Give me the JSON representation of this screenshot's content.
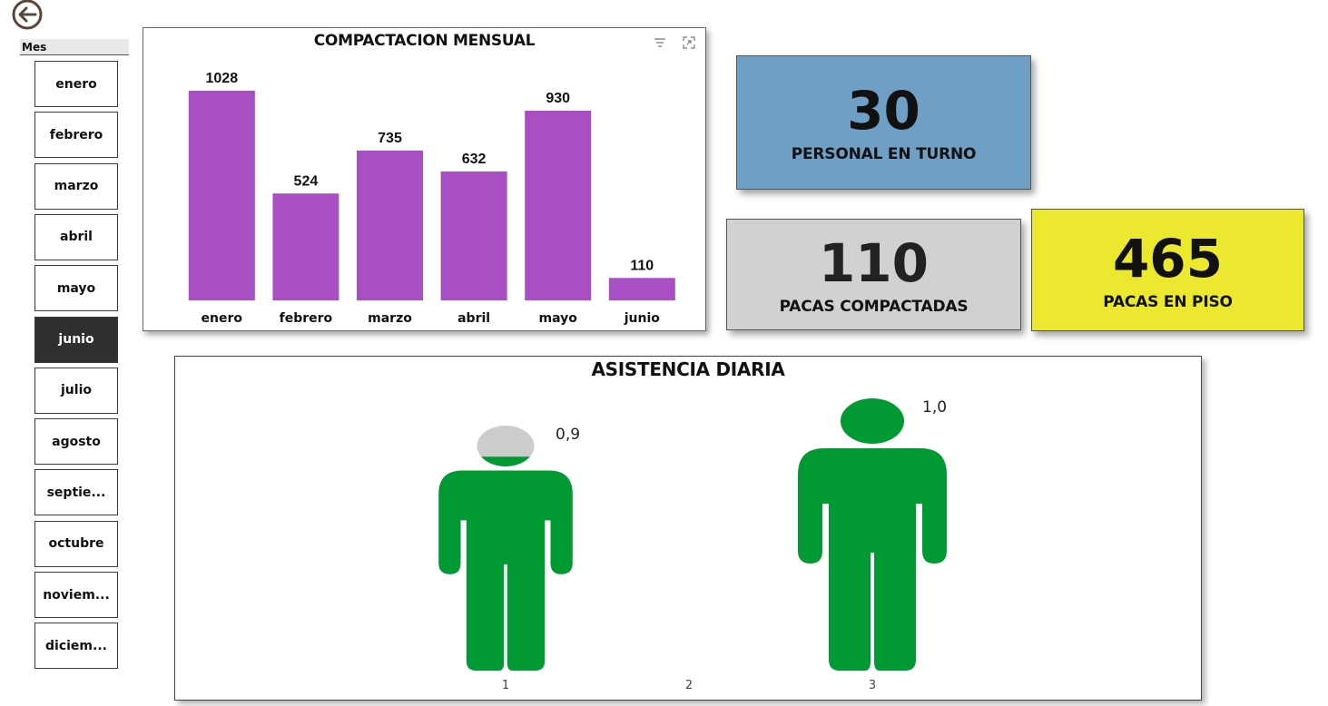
{
  "back": {
    "icon": "back-arrow-icon"
  },
  "slicer": {
    "header": "Mes",
    "items": [
      {
        "label": "enero",
        "selected": false
      },
      {
        "label": "febrero",
        "selected": false
      },
      {
        "label": "marzo",
        "selected": false
      },
      {
        "label": "abril",
        "selected": false
      },
      {
        "label": "mayo",
        "selected": false
      },
      {
        "label": "junio",
        "selected": true
      },
      {
        "label": "julio",
        "selected": false
      },
      {
        "label": "agosto",
        "selected": false
      },
      {
        "label": "septie...",
        "selected": false
      },
      {
        "label": "octubre",
        "selected": false
      },
      {
        "label": "noviem...",
        "selected": false
      },
      {
        "label": "diciem...",
        "selected": false
      }
    ]
  },
  "kpis": {
    "personal": {
      "value": "30",
      "label": "PERSONAL EN TURNO",
      "color": "#6f9fc4"
    },
    "pacas": {
      "value": "110",
      "label": "PACAS COMPACTADAS",
      "color": "#d1d1d1"
    },
    "piso": {
      "value": "465",
      "label": "PACAS EN PISO",
      "color": "#ece82f"
    }
  },
  "chart_data": [
    {
      "type": "bar",
      "title": "COMPACTACION MENSUAL",
      "categories": [
        "enero",
        "febrero",
        "marzo",
        "abril",
        "mayo",
        "junio"
      ],
      "values": [
        1028,
        524,
        735,
        632,
        930,
        110
      ],
      "bar_color": "#a94fc4",
      "ylim": [
        0,
        1028
      ],
      "grid": false,
      "icons": [
        "filter-icon",
        "focus-mode-icon"
      ]
    },
    {
      "type": "pictogram",
      "title": "ASISTENCIA DIARIA",
      "categories": [
        "1",
        "2",
        "3"
      ],
      "values": [
        0.9,
        null,
        1.0
      ],
      "labels": [
        "0,9",
        "",
        "1,0"
      ],
      "fill_color": "#009933",
      "empty_color": "#cccccc"
    }
  ]
}
